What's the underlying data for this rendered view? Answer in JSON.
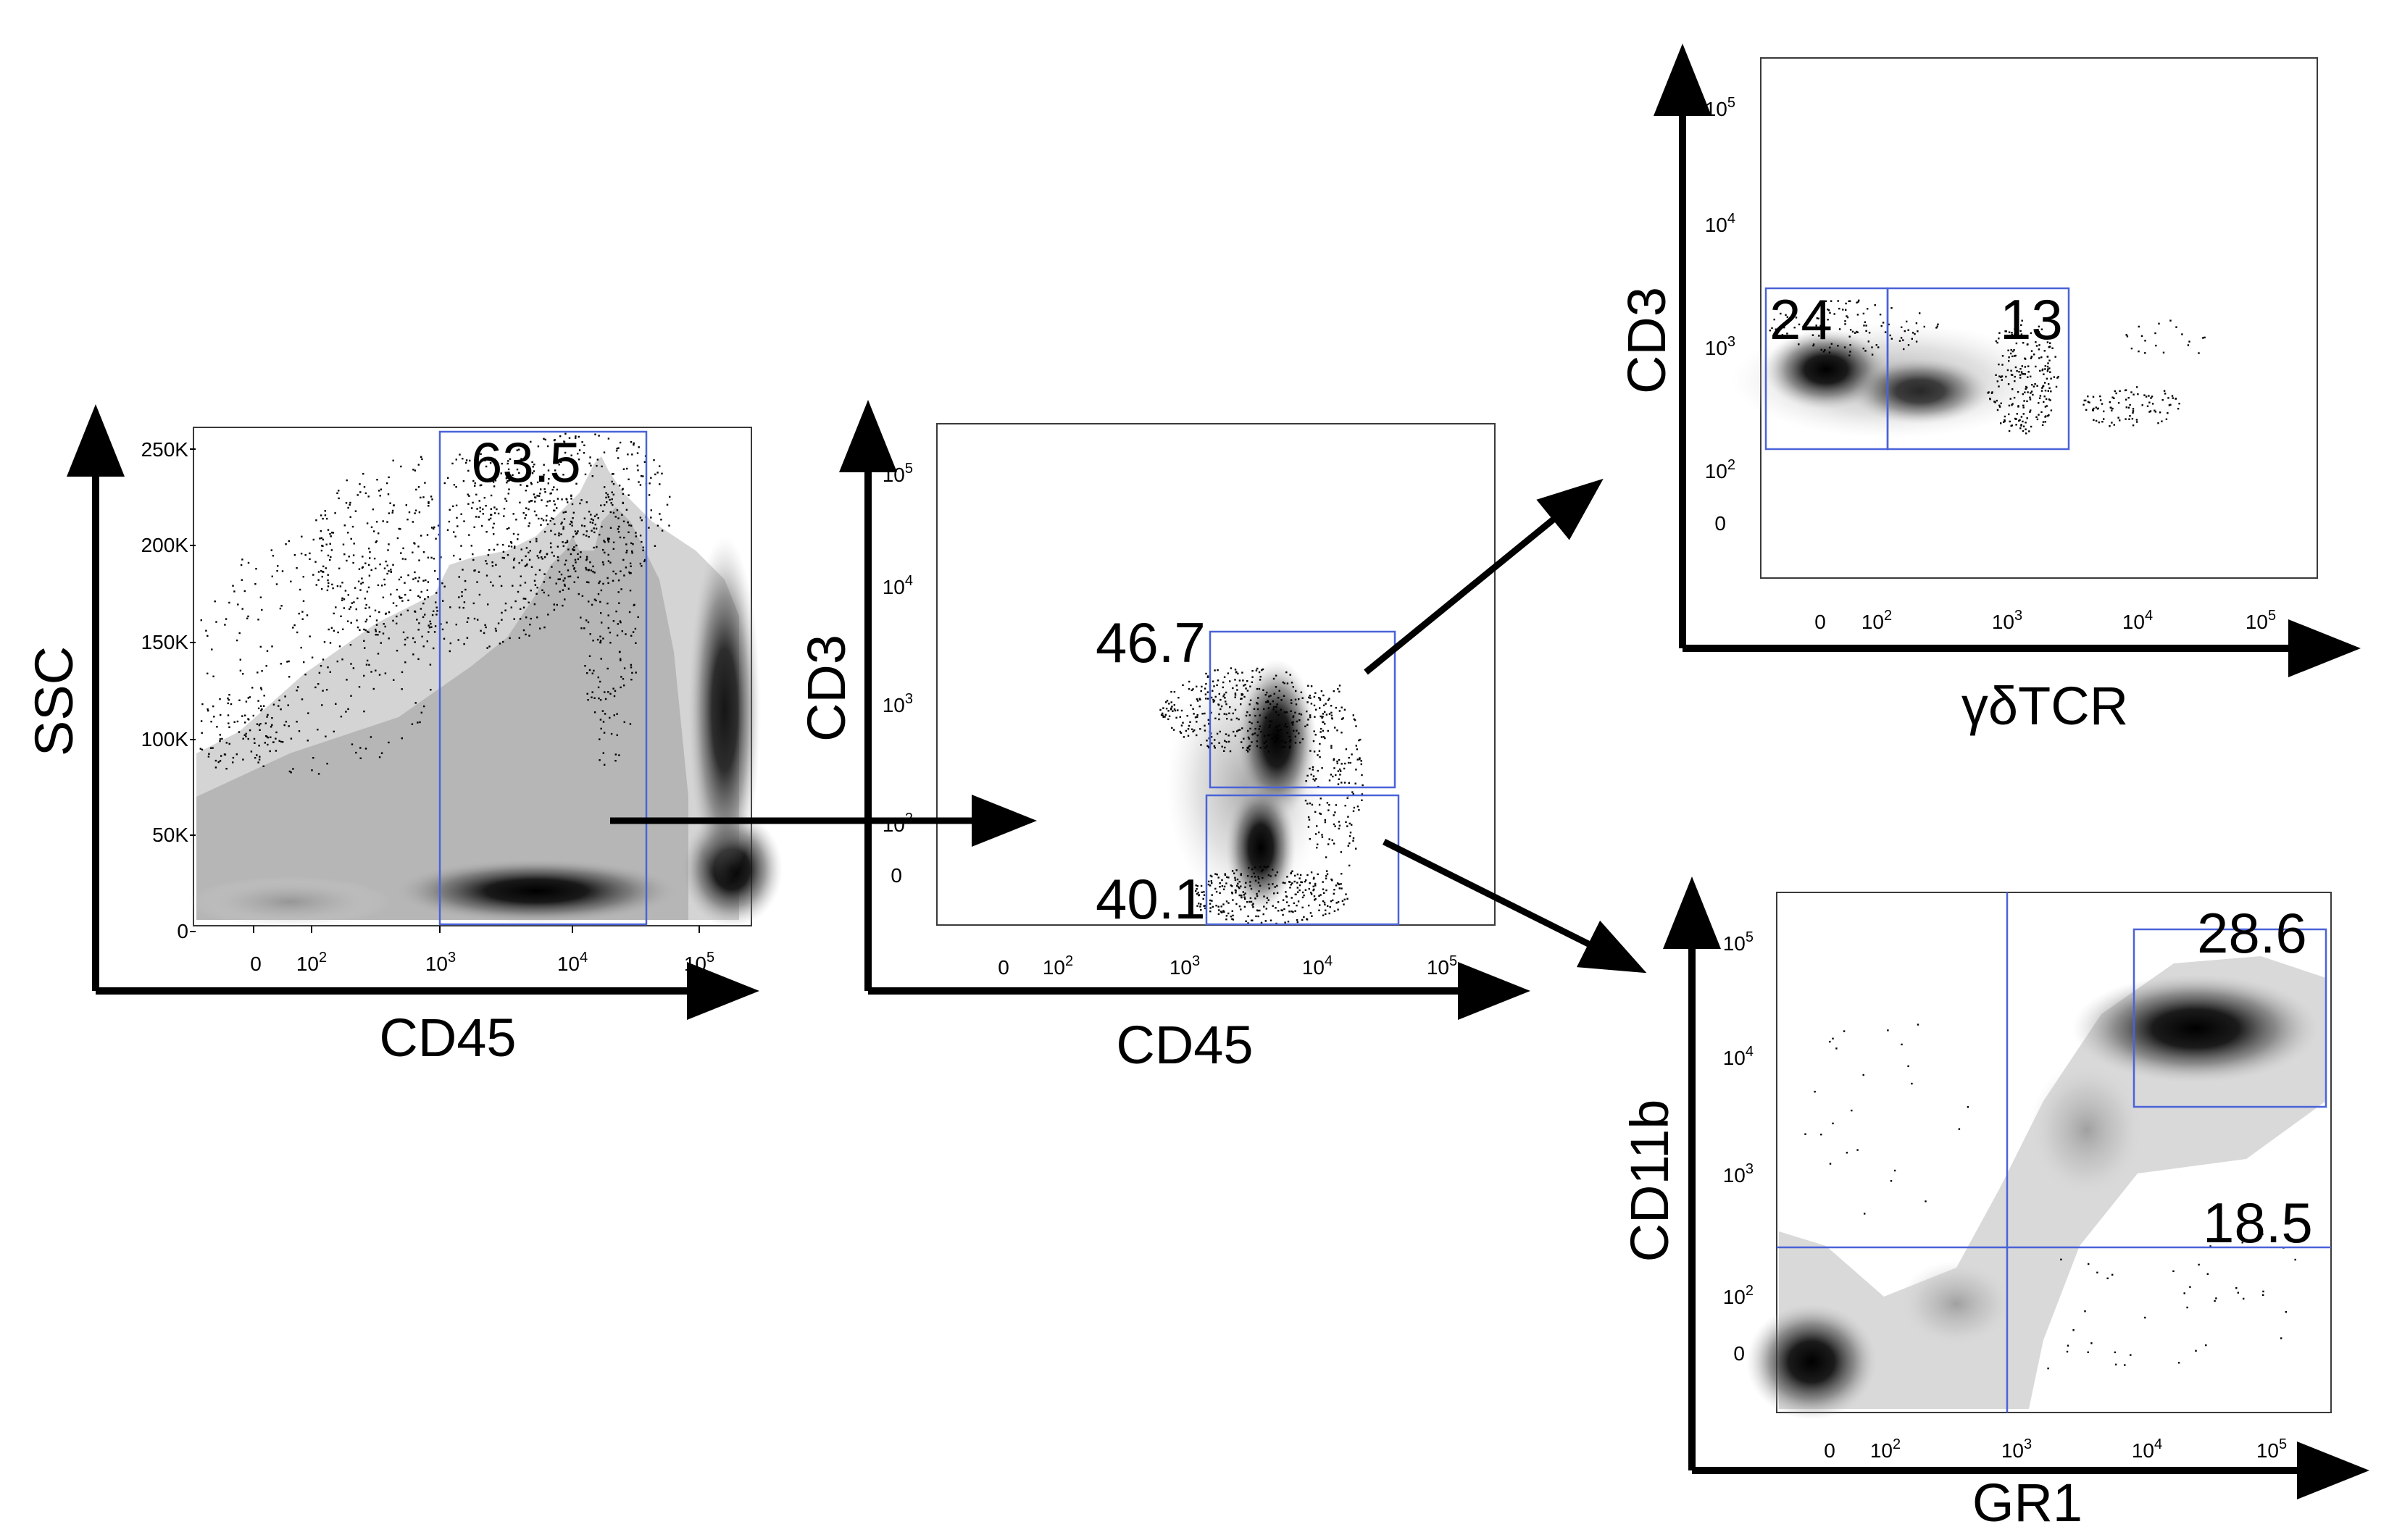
{
  "chart_data": [
    {
      "type": "scatter",
      "id": "panel1",
      "xlabel": "CD45",
      "ylabel": "SSC",
      "x_scale": "biexponential",
      "y_scale": "linear",
      "x_ticks": [
        "0",
        "10^2",
        "10^3",
        "10^4",
        "10^5"
      ],
      "y_ticks": [
        "0",
        "50K",
        "100K",
        "150K",
        "200K",
        "250K"
      ],
      "ylim": [
        0,
        262144
      ],
      "gates": [
        {
          "label": "63.5",
          "x_range": [
            900,
            40000
          ],
          "y_range": [
            0,
            258000
          ]
        }
      ],
      "populations": [
        {
          "x": 4000,
          "y": 30000,
          "density": "high"
        },
        {
          "x": 5000,
          "y": 150000,
          "density": "medium"
        },
        {
          "x": 300,
          "y": 25000,
          "density": "medium"
        }
      ]
    },
    {
      "type": "scatter",
      "id": "panel2",
      "xlabel": "CD45",
      "ylabel": "CD3",
      "x_scale": "biexponential",
      "y_scale": "biexponential",
      "x_ticks": [
        "0",
        "10^2",
        "10^3",
        "10^4",
        "10^5"
      ],
      "y_ticks": [
        "0",
        "10^2",
        "10^3",
        "10^4",
        "10^5"
      ],
      "gates": [
        {
          "label": "46.7",
          "x_range": [
            1500,
            40000
          ],
          "y_range": [
            180,
            4000
          ]
        },
        {
          "label": "40.1",
          "x_range": [
            1500,
            45000
          ],
          "y_range": [
            -100,
            150
          ]
        }
      ],
      "populations": [
        {
          "x": 4500,
          "y": 700,
          "density": "high"
        },
        {
          "x": 4000,
          "y": 60,
          "density": "high"
        }
      ]
    },
    {
      "type": "scatter",
      "id": "panel3",
      "xlabel": "γδTCR",
      "ylabel": "CD3",
      "x_scale": "biexponential",
      "y_scale": "biexponential",
      "x_ticks": [
        "0",
        "10^2",
        "10^3",
        "10^4",
        "10^5"
      ],
      "y_ticks": [
        "0",
        "10^2",
        "10^3",
        "10^4",
        "10^5"
      ],
      "gates": [
        {
          "label": "24",
          "x_range": [
            -200,
            120
          ],
          "y_range": [
            140,
            2800
          ]
        },
        {
          "label": "13",
          "x_range": [
            120,
            2800
          ],
          "y_range": [
            140,
            2800
          ]
        }
      ],
      "populations": [
        {
          "x": 10,
          "y": 600,
          "density": "high"
        },
        {
          "x": 300,
          "y": 500,
          "density": "medium"
        }
      ]
    },
    {
      "type": "scatter",
      "id": "panel4",
      "xlabel": "GR1",
      "ylabel": "CD11b",
      "x_scale": "biexponential",
      "y_scale": "biexponential",
      "x_ticks": [
        "0",
        "10^2",
        "10^3",
        "10^4",
        "10^5"
      ],
      "y_ticks": [
        "0",
        "10^2",
        "10^3",
        "10^4",
        "10^5"
      ],
      "gates": [
        {
          "label": "28.6",
          "x_range": [
            7000,
            200000
          ],
          "y_range": [
            3500,
            120000
          ]
        },
        {
          "label": "18.5",
          "type": "quadrant",
          "x_split": 700,
          "y_split": 250
        }
      ],
      "populations": [
        {
          "x": 30000,
          "y": 20000,
          "density": "high"
        },
        {
          "x": -150,
          "y": -100,
          "density": "high"
        },
        {
          "x": 1500,
          "y": 3000,
          "density": "medium"
        }
      ]
    }
  ]
}
